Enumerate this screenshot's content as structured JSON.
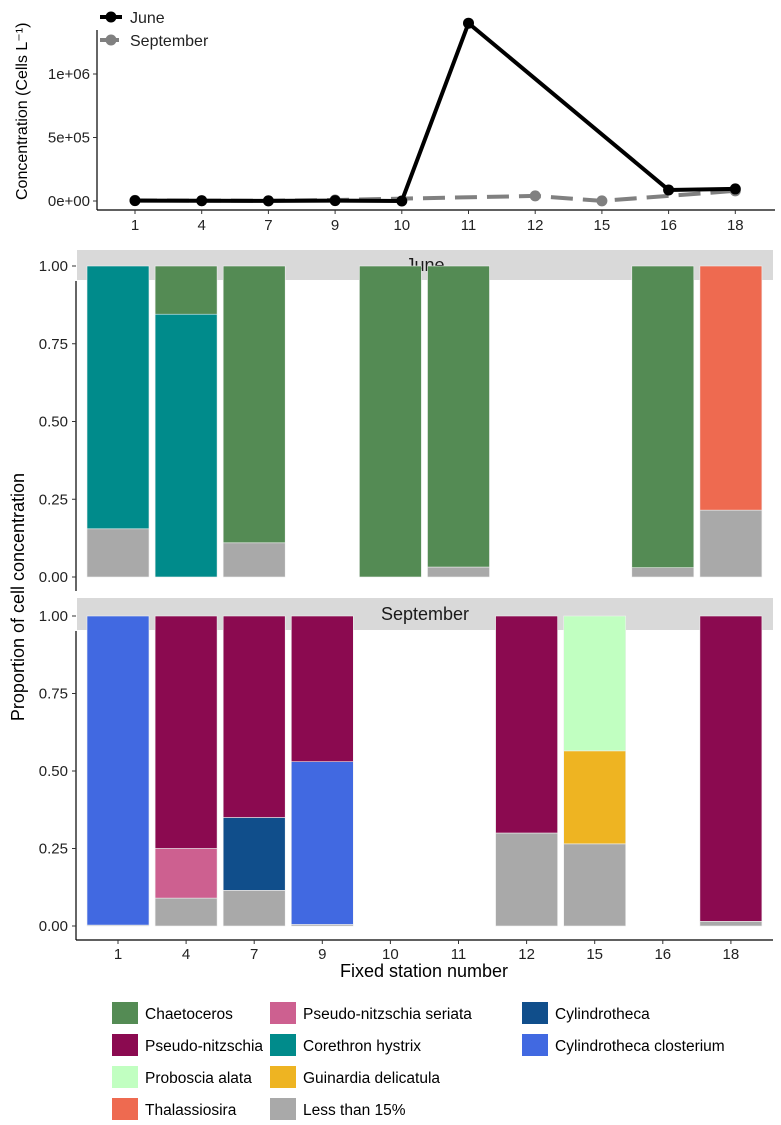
{
  "chart_data": [
    {
      "type": "line",
      "ylabel": "Concentration (Cells L⁻¹)",
      "categories": [
        "1",
        "4",
        "7",
        "9",
        "10",
        "11",
        "12",
        "15",
        "16",
        "18"
      ],
      "yticks": [
        "0e+00",
        "5e+05",
        "1e+06"
      ],
      "ylim": [
        0,
        1400000
      ],
      "legend_position": "top-left",
      "series": [
        {
          "name": "June",
          "color": "#000000",
          "dash": "solid",
          "values": [
            3000,
            2000,
            1000,
            3000,
            0,
            1400000,
            null,
            null,
            87000,
            95000
          ]
        },
        {
          "name": "September",
          "color": "#808080",
          "dash": "dashed",
          "values": [
            5000,
            3000,
            2000,
            8000,
            null,
            null,
            40000,
            1000,
            null,
            80000
          ]
        }
      ]
    },
    {
      "type": "bar",
      "stacked": true,
      "xlabel": "Fixed station number",
      "ylabel": "Proportion of cell concentration",
      "categories": [
        "1",
        "4",
        "7",
        "9",
        "10",
        "11",
        "12",
        "15",
        "16",
        "18"
      ],
      "yticks": [
        "0.00",
        "0.25",
        "0.50",
        "0.75",
        "1.00"
      ],
      "ylim": [
        0,
        1
      ],
      "legend_position": "bottom",
      "taxa": [
        {
          "name": "Chaetoceros",
          "color": "#548B54"
        },
        {
          "name": "Pseudo-nitzschia",
          "color": "#8B0A50"
        },
        {
          "name": "Proboscia alata",
          "color": "#C1FFC1"
        },
        {
          "name": "Thalassiosira",
          "color": "#EE6A50"
        },
        {
          "name": "Pseudo-nitzschia seriata",
          "color": "#CD6090"
        },
        {
          "name": "Corethron hystrix",
          "color": "#008B8B"
        },
        {
          "name": "Guinardia delicatula",
          "color": "#EEB422"
        },
        {
          "name": "Less than 15%",
          "color": "#A9A9A9"
        },
        {
          "name": "Cylindrotheca",
          "color": "#104E8B"
        },
        {
          "name": "Cylindrotheca closterium",
          "color": "#4169E1"
        }
      ],
      "panels": [
        {
          "title": "June",
          "bars": [
            {
              "station": "1",
              "segments": [
                [
                  "Less than 15%",
                  0.155
                ],
                [
                  "Corethron hystrix",
                  0.845
                ]
              ]
            },
            {
              "station": "4",
              "segments": [
                [
                  "Corethron hystrix",
                  0.845
                ],
                [
                  "Chaetoceros",
                  0.155
                ]
              ]
            },
            {
              "station": "7",
              "segments": [
                [
                  "Less than 15%",
                  0.11
                ],
                [
                  "Chaetoceros",
                  0.89
                ]
              ]
            },
            {
              "station": "10",
              "segments": [
                [
                  "Chaetoceros",
                  1.0
                ]
              ]
            },
            {
              "station": "11",
              "segments": [
                [
                  "Less than 15%",
                  0.032
                ],
                [
                  "Chaetoceros",
                  0.968
                ]
              ]
            },
            {
              "station": "16",
              "segments": [
                [
                  "Less than 15%",
                  0.03
                ],
                [
                  "Chaetoceros",
                  0.97
                ]
              ]
            },
            {
              "station": "18",
              "segments": [
                [
                  "Less than 15%",
                  0.215
                ],
                [
                  "Thalassiosira",
                  0.785
                ]
              ]
            }
          ]
        },
        {
          "title": "September",
          "bars": [
            {
              "station": "1",
              "segments": [
                [
                  "Less than 15%",
                  0.003
                ],
                [
                  "Cylindrotheca closterium",
                  0.997
                ]
              ]
            },
            {
              "station": "4",
              "segments": [
                [
                  "Less than 15%",
                  0.09
                ],
                [
                  "Pseudo-nitzschia seriata",
                  0.16
                ],
                [
                  "Pseudo-nitzschia",
                  0.75
                ]
              ]
            },
            {
              "station": "7",
              "segments": [
                [
                  "Less than 15%",
                  0.115
                ],
                [
                  "Cylindrotheca",
                  0.235
                ],
                [
                  "Pseudo-nitzschia",
                  0.65
                ]
              ]
            },
            {
              "station": "9",
              "segments": [
                [
                  "Less than 15%",
                  0.005
                ],
                [
                  "Cylindrotheca closterium",
                  0.525
                ],
                [
                  "Pseudo-nitzschia",
                  0.47
                ]
              ]
            },
            {
              "station": "12",
              "segments": [
                [
                  "Less than 15%",
                  0.3
                ],
                [
                  "Pseudo-nitzschia",
                  0.7
                ]
              ]
            },
            {
              "station": "15",
              "segments": [
                [
                  "Less than 15%",
                  0.265
                ],
                [
                  "Guinardia delicatula",
                  0.3
                ],
                [
                  "Proboscia alata",
                  0.435
                ]
              ]
            },
            {
              "station": "18",
              "segments": [
                [
                  "Less than 15%",
                  0.015
                ],
                [
                  "Pseudo-nitzschia",
                  0.985
                ]
              ]
            }
          ]
        }
      ]
    }
  ]
}
